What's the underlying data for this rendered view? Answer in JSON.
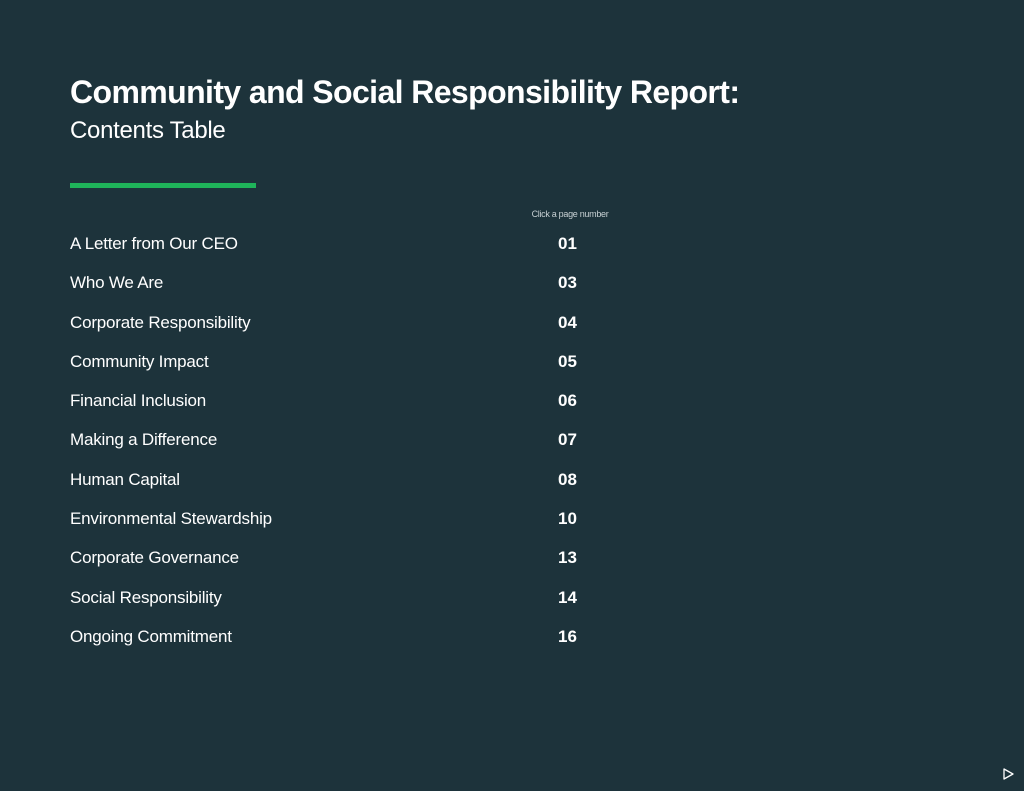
{
  "header": {
    "title": "Community and Social Responsibility Report:",
    "subtitle": "Contents Table"
  },
  "toc": {
    "hint": "Click a page number",
    "entries": [
      {
        "label": "A Letter from Our CEO",
        "page": "01"
      },
      {
        "label": "Who We Are",
        "page": "03"
      },
      {
        "label": "Corporate Responsibility",
        "page": "04"
      },
      {
        "label": "Community Impact",
        "page": "05"
      },
      {
        "label": "Financial Inclusion",
        "page": "06"
      },
      {
        "label": "Making a Difference",
        "page": "07"
      },
      {
        "label": "Human Capital",
        "page": "08"
      },
      {
        "label": "Environmental Stewardship",
        "page": "10"
      },
      {
        "label": "Corporate Governance",
        "page": "13"
      },
      {
        "label": "Social Responsibility",
        "page": "14"
      },
      {
        "label": "Ongoing Commitment",
        "page": "16"
      }
    ]
  },
  "navigation": {
    "next_icon": "play-triangle-icon"
  },
  "colors": {
    "background": "#1d333b",
    "accent": "#1fb45a",
    "text": "#ffffff"
  }
}
